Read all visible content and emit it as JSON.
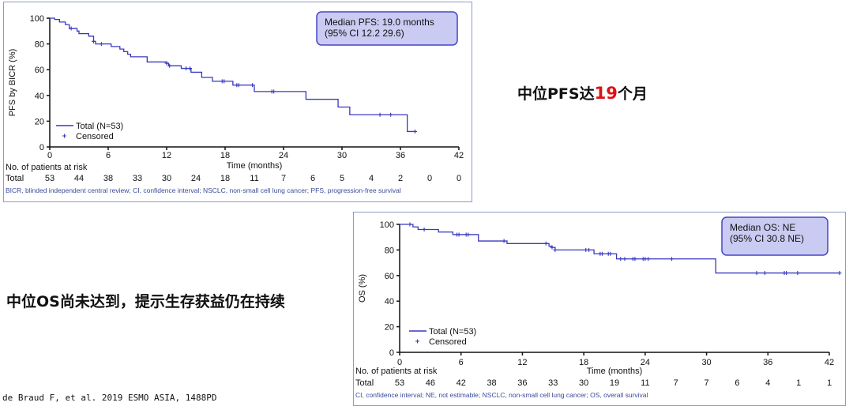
{
  "colors": {
    "line": "#3838c0",
    "box_fill": "#c9cbf2",
    "box_border": "#4545c5",
    "footnote": "#3a4a9a",
    "highlight": "#e01010"
  },
  "chart_data": [
    {
      "type": "line",
      "id": "pfs",
      "ylabel": "PFS by BICR (%)",
      "xlabel": "Time (months)",
      "xlim": [
        0,
        42
      ],
      "ylim": [
        0,
        100
      ],
      "xticks": [
        "0",
        "6",
        "12",
        "18",
        "24",
        "30",
        "36",
        "42"
      ],
      "yticks": [
        "0",
        "20",
        "40",
        "60",
        "80",
        "100"
      ],
      "median_box": [
        "Median PFS: 19.0 months",
        "(95% CI 12.2  29.6)"
      ],
      "legend": {
        "line": "Total (N=53)",
        "censor": "Censored",
        "placement": "bottom-left"
      },
      "steps": [
        [
          0,
          100
        ],
        [
          0.5,
          99
        ],
        [
          1,
          97
        ],
        [
          1.6,
          95
        ],
        [
          2,
          92
        ],
        [
          2.8,
          90
        ],
        [
          3,
          88
        ],
        [
          4,
          86
        ],
        [
          4.5,
          82
        ],
        [
          4.7,
          80
        ],
        [
          6.3,
          78
        ],
        [
          7.2,
          76
        ],
        [
          7.6,
          74
        ],
        [
          8,
          72
        ],
        [
          8.3,
          70
        ],
        [
          10,
          66
        ],
        [
          12,
          65
        ],
        [
          12.2,
          63
        ],
        [
          13.5,
          61
        ],
        [
          14.5,
          58
        ],
        [
          15.6,
          54
        ],
        [
          16.7,
          51
        ],
        [
          18.8,
          48
        ],
        [
          21,
          43
        ],
        [
          26.3,
          37
        ],
        [
          29.6,
          31
        ],
        [
          30.8,
          25
        ],
        [
          36.7,
          12
        ],
        [
          37.5,
          12
        ]
      ],
      "censored": [
        [
          2.2,
          92
        ],
        [
          4.5,
          82
        ],
        [
          5.3,
          80
        ],
        [
          12,
          65
        ],
        [
          12.3,
          63
        ],
        [
          14,
          61
        ],
        [
          14.4,
          61
        ],
        [
          17.7,
          51
        ],
        [
          17.9,
          51
        ],
        [
          19.2,
          48
        ],
        [
          19.4,
          48
        ],
        [
          20.8,
          48
        ],
        [
          22.8,
          43
        ],
        [
          23,
          43
        ],
        [
          33.9,
          25
        ],
        [
          35,
          25
        ],
        [
          37.5,
          12
        ]
      ],
      "risk_title": "No. of patients at risk",
      "risk_label": "Total",
      "risk_times": [
        0,
        3,
        6,
        9,
        12,
        15,
        18,
        21,
        24,
        27,
        30,
        33,
        36,
        39,
        42
      ],
      "risk": [
        "53",
        "44",
        "38",
        "33",
        "30",
        "24",
        "18",
        "11",
        "7",
        "6",
        "5",
        "4",
        "2",
        "0",
        "0"
      ],
      "footnote": "BICR, blinded independent central review; CI, confidence interval; NSCLC, non-small cell lung cancer; PFS, progression-free survival"
    },
    {
      "type": "line",
      "id": "os",
      "ylabel": "OS (%)",
      "xlabel": "Time (months)",
      "xlim": [
        0,
        42
      ],
      "ylim": [
        0,
        100
      ],
      "xticks": [
        "0",
        "6",
        "12",
        "18",
        "24",
        "30",
        "36",
        "42"
      ],
      "yticks": [
        "0",
        "20",
        "40",
        "60",
        "80",
        "100"
      ],
      "median_box": [
        "Median OS: NE",
        "(95% CI 30.8  NE)"
      ],
      "legend": {
        "line": "Total (N=53)",
        "censor": "Censored",
        "placement": "bottom-left"
      },
      "steps": [
        [
          0,
          100
        ],
        [
          1.3,
          98
        ],
        [
          1.8,
          96
        ],
        [
          3.8,
          94
        ],
        [
          5.2,
          92
        ],
        [
          7.7,
          87
        ],
        [
          10.5,
          85
        ],
        [
          14.6,
          83
        ],
        [
          14.9,
          82
        ],
        [
          15.2,
          80
        ],
        [
          19,
          77
        ],
        [
          21.2,
          73
        ],
        [
          30.9,
          62
        ],
        [
          43,
          62
        ]
      ],
      "censored": [
        [
          1,
          100
        ],
        [
          2.4,
          96
        ],
        [
          5.6,
          92
        ],
        [
          5.8,
          92
        ],
        [
          6.5,
          92
        ],
        [
          6.7,
          92
        ],
        [
          10.2,
          87
        ],
        [
          14.3,
          85
        ],
        [
          14.9,
          82
        ],
        [
          15.2,
          80
        ],
        [
          18.2,
          80
        ],
        [
          18.5,
          80
        ],
        [
          19.6,
          77
        ],
        [
          19.8,
          77
        ],
        [
          20.4,
          77
        ],
        [
          20.6,
          77
        ],
        [
          21.6,
          73
        ],
        [
          22,
          73
        ],
        [
          22.8,
          73
        ],
        [
          23,
          73
        ],
        [
          23.8,
          73
        ],
        [
          24,
          73
        ],
        [
          24.3,
          73
        ],
        [
          26.6,
          73
        ],
        [
          34.9,
          62
        ],
        [
          35.7,
          62
        ],
        [
          37.6,
          62
        ],
        [
          37.8,
          62
        ],
        [
          38.9,
          62
        ],
        [
          43,
          62
        ]
      ],
      "risk_title": "No. of patients at risk",
      "risk_label": "Total",
      "risk_times": [
        0,
        3,
        6,
        9,
        12,
        15,
        18,
        21,
        24,
        27,
        30,
        33,
        36,
        39,
        42
      ],
      "risk": [
        "53",
        "46",
        "42",
        "38",
        "36",
        "33",
        "30",
        "19",
        "11",
        "7",
        "7",
        "6",
        "4",
        "1",
        "1"
      ],
      "footnote": "CI, confidence interval; NE, not estimable; NSCLC, non-small cell lung cancer; OS, overall survival"
    }
  ],
  "annotations": {
    "pfs_pre": "中位PFS达",
    "pfs_num": "19",
    "pfs_post": "个月",
    "os_text": "中位OS尚未达到，提示生存获益仍在持续"
  },
  "citation": "de Braud F, et al. 2019 ESMO ASIA, 1488PD"
}
